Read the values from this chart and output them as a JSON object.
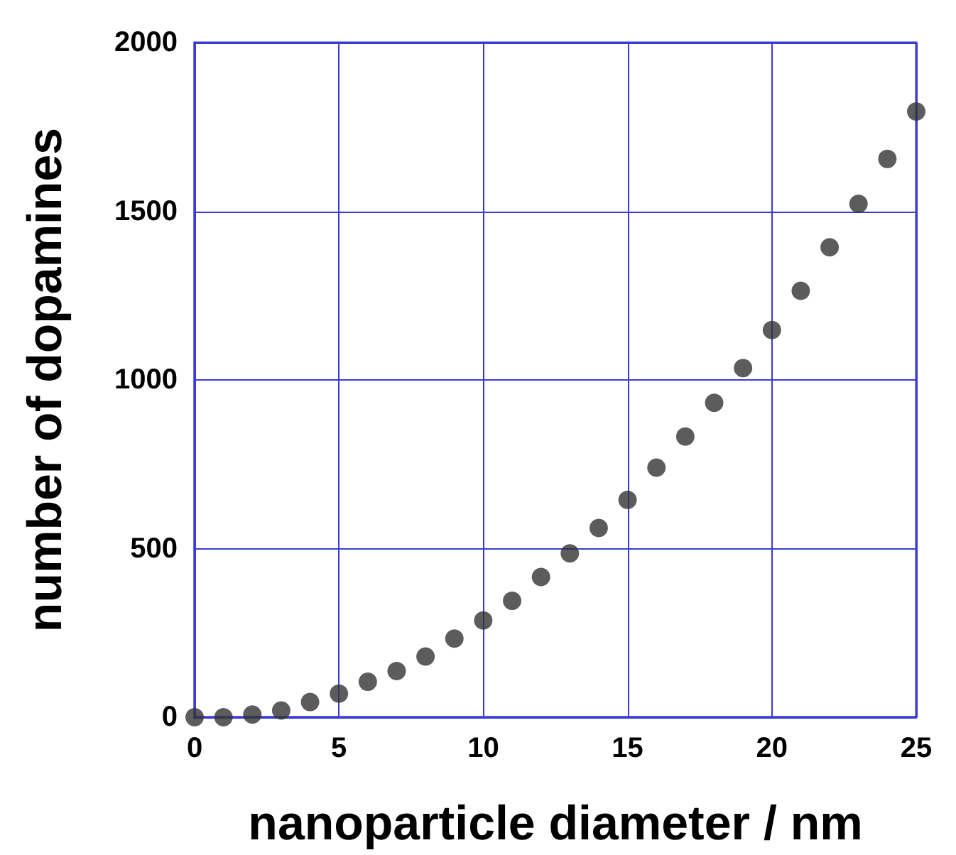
{
  "chart_data": {
    "type": "scatter",
    "xlabel": "nanoparticle diameter / nm",
    "ylabel": "number of dopamines",
    "x": [
      0,
      1,
      2,
      3,
      4,
      5,
      6,
      7,
      8,
      9,
      10,
      11,
      12,
      13,
      14,
      15,
      16,
      17,
      18,
      19,
      20,
      21,
      22,
      23,
      24,
      25
    ],
    "series": [
      {
        "color": "#333333",
        "values": [
          0,
          0,
          8,
          20,
          45,
          70,
          105,
          137,
          180,
          233,
          287,
          345,
          416,
          486,
          561,
          644,
          740,
          832,
          932,
          1035,
          1148,
          1264,
          1393,
          1522,
          1655,
          1796
        ]
      }
    ],
    "xlim": [
      0,
      25
    ],
    "xticks": [
      0,
      5,
      10,
      15,
      20,
      25
    ],
    "ylim": [
      0,
      2000
    ],
    "yticks": [
      0,
      500,
      1000,
      1500,
      2000
    ],
    "grid": true,
    "marker": "circle"
  }
}
